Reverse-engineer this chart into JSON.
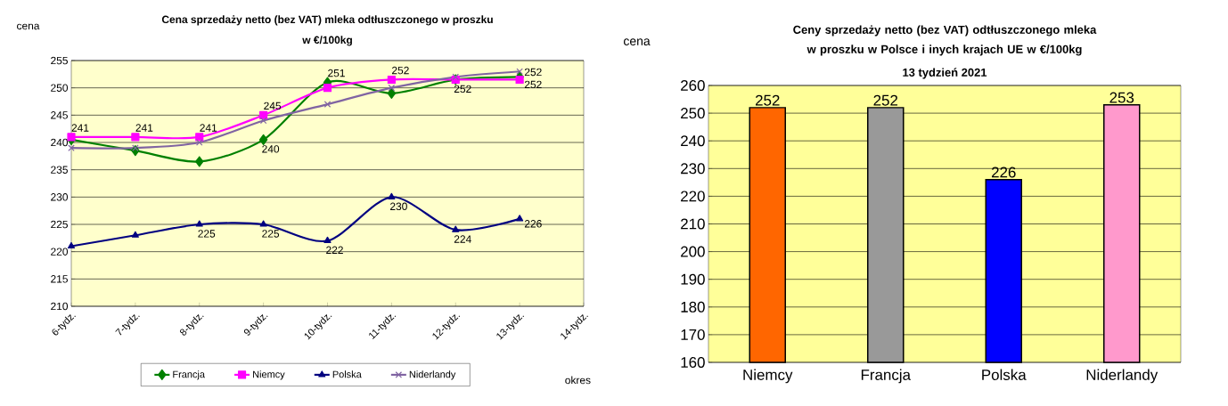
{
  "chart_data": [
    {
      "type": "line",
      "title": "Cena sprzedaży netto (bez VAT) mleka odtłuszczonego w proszku",
      "subtitle": "w €/100kg",
      "xlabel": "okres",
      "ylabel": "cena",
      "categories": [
        "6-tydz.",
        "7-tydz.",
        "8-tydz.",
        "9-tydz.",
        "10-tydz.",
        "11-tydz.",
        "12-tydz.",
        "13-tydz.",
        "14-tydz."
      ],
      "series": [
        {
          "name": "Francja",
          "color": "#008000",
          "marker": "diamond",
          "values": [
            240.5,
            238.5,
            236.5,
            240.5,
            251,
            249,
            251.5,
            252,
            null
          ],
          "value_labels": [
            null,
            null,
            null,
            "240",
            "251",
            null,
            null,
            "252",
            null
          ]
        },
        {
          "name": "Niemcy",
          "color": "#ff00ff",
          "marker": "square",
          "values": [
            241,
            241,
            241,
            245,
            250,
            251.5,
            251.5,
            251.5,
            null
          ],
          "value_labels": [
            "241",
            "241",
            "241",
            "245",
            null,
            "252",
            "252",
            "252",
            null
          ]
        },
        {
          "name": "Polska",
          "color": "#000080",
          "marker": "triangle",
          "values": [
            221,
            223,
            225,
            225,
            222,
            230,
            224,
            226,
            null
          ],
          "value_labels": [
            null,
            null,
            "225",
            "225",
            "222",
            "230",
            "224",
            "226",
            null
          ]
        },
        {
          "name": "Niderlandy",
          "color": "#8064a2",
          "marker": "cross",
          "values": [
            239,
            239,
            240,
            244,
            247,
            250,
            252,
            253,
            null
          ]
        }
      ],
      "ylim": [
        210,
        255
      ],
      "yticks": [
        210,
        215,
        220,
        225,
        230,
        235,
        240,
        245,
        250,
        255
      ],
      "grid": "y",
      "legend": "bottom"
    },
    {
      "type": "bar",
      "title": "Ceny sprzedaży netto (bez VAT) odtłuszczonego mleka w proszku w Polsce i inych krajach UE w €/100kg",
      "subtitle": "13 tydzień 2021",
      "ylabel": "cena",
      "categories": [
        "Niemcy",
        "Francja",
        "Polska",
        "Niderlandy"
      ],
      "values": [
        252,
        252,
        226,
        253
      ],
      "colors": [
        "#ff6600",
        "#999999",
        "#0000ff",
        "#ff99cc"
      ],
      "ylim": [
        160,
        260
      ],
      "yticks": [
        160,
        170,
        180,
        190,
        200,
        210,
        220,
        230,
        240,
        250,
        260
      ],
      "grid": "y",
      "data_labels": true
    }
  ]
}
